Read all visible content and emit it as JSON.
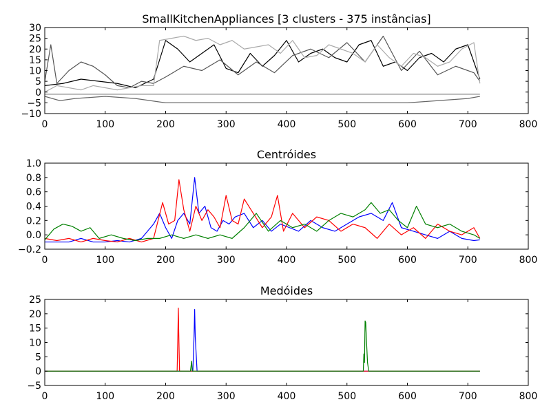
{
  "chart_data": [
    {
      "type": "line",
      "title": "SmallKitchenAppliances [3 clusters - 375 instâncias]",
      "xlim": [
        0,
        800
      ],
      "ylim": [
        -10,
        30
      ],
      "xticks": [
        0,
        100,
        200,
        300,
        400,
        500,
        600,
        700,
        800
      ],
      "yticks": [
        -10,
        -5,
        0,
        5,
        10,
        15,
        20,
        25,
        30
      ],
      "grid": false,
      "description_of_series": "Many overlaid grayscale instance series (375 instances, 3 clusters) over x 0-720; values mostly 0-26 with dips to about -5; active mainly x 180-700 plus low activity near x 0-180.",
      "series": [
        {
          "color": "#000000",
          "x": [
            0,
            30,
            60,
            90,
            120,
            150,
            180,
            200,
            220,
            240,
            260,
            280,
            300,
            320,
            340,
            360,
            380,
            400,
            420,
            440,
            460,
            480,
            500,
            520,
            540,
            560,
            580,
            600,
            620,
            640,
            660,
            680,
            700,
            720
          ],
          "values": [
            3,
            4,
            6,
            5,
            4,
            2,
            6,
            24,
            20,
            14,
            18,
            22,
            11,
            9,
            18,
            12,
            17,
            24,
            14,
            18,
            20,
            16,
            14,
            22,
            24,
            12,
            14,
            10,
            16,
            18,
            14,
            20,
            22,
            6
          ]
        },
        {
          "color": "#555555",
          "x": [
            0,
            10,
            20,
            40,
            60,
            80,
            100,
            120,
            140,
            160,
            180,
            200,
            230,
            260,
            290,
            320,
            350,
            380,
            410,
            440,
            470,
            500,
            530,
            560,
            590,
            620,
            650,
            680,
            710,
            720
          ],
          "values": [
            5,
            22,
            4,
            10,
            14,
            12,
            8,
            3,
            2,
            5,
            4,
            7,
            12,
            10,
            15,
            8,
            14,
            9,
            17,
            20,
            16,
            23,
            14,
            26,
            10,
            19,
            8,
            12,
            9,
            5
          ]
        },
        {
          "color": "#aaaaaa",
          "x": [
            0,
            20,
            40,
            60,
            80,
            100,
            120,
            140,
            160,
            180,
            190,
            210,
            230,
            250,
            270,
            290,
            310,
            330,
            350,
            370,
            390,
            410,
            430,
            450,
            470,
            490,
            510,
            530,
            550,
            570,
            590,
            610,
            630,
            650,
            670,
            690,
            710,
            720
          ],
          "values": [
            0,
            3,
            2,
            1,
            3,
            2,
            1,
            2,
            3,
            3,
            24,
            25,
            26,
            24,
            25,
            22,
            24,
            20,
            21,
            22,
            18,
            24,
            16,
            17,
            22,
            20,
            18,
            14,
            22,
            16,
            12,
            18,
            16,
            12,
            14,
            20,
            23,
            4
          ]
        },
        {
          "color": "#666666",
          "x": [
            0,
            25,
            50,
            100,
            150,
            200,
            250,
            300,
            350,
            400,
            450,
            500,
            550,
            600,
            650,
            700,
            720
          ],
          "values": [
            -2,
            -4,
            -3,
            -2,
            -3,
            -5,
            -5,
            -5,
            -5,
            -5,
            -5,
            -5,
            -5,
            -5,
            -4,
            -3,
            -2
          ]
        },
        {
          "color": "#888888",
          "x": [
            0,
            720
          ],
          "values": [
            -1,
            -1
          ]
        }
      ]
    },
    {
      "type": "line",
      "title": "Centróides",
      "xlim": [
        0,
        800
      ],
      "ylim": [
        -0.2,
        1.0
      ],
      "xticks": [
        0,
        100,
        200,
        300,
        400,
        500,
        600,
        700,
        800
      ],
      "yticks": [
        -0.2,
        0.0,
        0.2,
        0.4,
        0.6,
        0.8,
        1.0
      ],
      "ytick_labels": [
        "−0.2",
        "0.0",
        "0.2",
        "0.4",
        "0.6",
        "0.8",
        "1.0"
      ],
      "grid": false,
      "series": [
        {
          "color": "#0000ff",
          "x": [
            0,
            20,
            40,
            60,
            80,
            100,
            120,
            140,
            160,
            180,
            190,
            200,
            210,
            220,
            230,
            240,
            248,
            255,
            265,
            275,
            285,
            295,
            305,
            315,
            330,
            345,
            360,
            375,
            390,
            405,
            420,
            440,
            460,
            480,
            500,
            520,
            540,
            560,
            575,
            590,
            610,
            630,
            650,
            670,
            690,
            710,
            720
          ],
          "values": [
            -0.1,
            -0.1,
            -0.1,
            -0.05,
            -0.1,
            -0.1,
            -0.08,
            -0.1,
            -0.05,
            0.15,
            0.3,
            0.1,
            -0.05,
            0.2,
            0.3,
            0.15,
            0.8,
            0.3,
            0.4,
            0.1,
            0.05,
            0.2,
            0.15,
            0.25,
            0.3,
            0.1,
            0.2,
            0.05,
            0.15,
            0.1,
            0.05,
            0.2,
            0.1,
            0.05,
            0.15,
            0.25,
            0.3,
            0.2,
            0.45,
            0.1,
            0.05,
            0.0,
            -0.05,
            0.05,
            -0.05,
            -0.08,
            -0.07
          ]
        },
        {
          "color": "#ff0000",
          "x": [
            0,
            20,
            40,
            60,
            80,
            100,
            120,
            140,
            160,
            180,
            195,
            205,
            215,
            222,
            230,
            240,
            250,
            260,
            270,
            280,
            290,
            300,
            310,
            320,
            330,
            345,
            360,
            375,
            385,
            395,
            410,
            430,
            450,
            470,
            490,
            510,
            530,
            550,
            570,
            590,
            610,
            630,
            650,
            670,
            690,
            710,
            720
          ],
          "values": [
            -0.05,
            -0.08,
            -0.05,
            -0.1,
            -0.05,
            -0.08,
            -0.1,
            -0.05,
            -0.1,
            -0.05,
            0.45,
            0.15,
            0.2,
            0.77,
            0.35,
            0.05,
            0.4,
            0.2,
            0.35,
            0.25,
            0.1,
            0.55,
            0.2,
            0.15,
            0.5,
            0.3,
            0.1,
            0.25,
            0.55,
            0.05,
            0.3,
            0.1,
            0.25,
            0.2,
            0.05,
            0.15,
            0.1,
            -0.05,
            0.15,
            0.0,
            0.1,
            -0.05,
            0.15,
            0.05,
            0.0,
            0.1,
            -0.05
          ]
        },
        {
          "color": "#008000",
          "x": [
            0,
            15,
            30,
            45,
            60,
            75,
            90,
            110,
            130,
            150,
            170,
            190,
            210,
            230,
            250,
            270,
            290,
            310,
            330,
            350,
            370,
            390,
            410,
            430,
            450,
            470,
            490,
            510,
            530,
            540,
            555,
            570,
            585,
            600,
            615,
            630,
            650,
            670,
            690,
            710,
            720
          ],
          "values": [
            -0.07,
            0.08,
            0.15,
            0.12,
            0.05,
            0.1,
            -0.05,
            0.0,
            -0.05,
            -0.08,
            -0.05,
            -0.05,
            0.0,
            -0.05,
            0.0,
            -0.05,
            0.0,
            -0.05,
            0.1,
            0.3,
            0.05,
            0.2,
            0.1,
            0.15,
            0.05,
            0.2,
            0.3,
            0.25,
            0.35,
            0.45,
            0.3,
            0.35,
            0.2,
            0.1,
            0.4,
            0.15,
            0.1,
            0.15,
            0.05,
            0.0,
            -0.05
          ]
        }
      ]
    },
    {
      "type": "line",
      "title": "Medóides",
      "xlim": [
        0,
        800
      ],
      "ylim": [
        -5,
        25
      ],
      "xticks": [
        0,
        100,
        200,
        300,
        400,
        500,
        600,
        700,
        800
      ],
      "yticks": [
        -5,
        0,
        5,
        10,
        15,
        20,
        25
      ],
      "grid": false,
      "series": [
        {
          "color": "#0000ff",
          "x": [
            0,
            245,
            247,
            248,
            249,
            252,
            720
          ],
          "values": [
            0,
            0,
            12,
            21.5,
            12,
            0,
            0
          ]
        },
        {
          "color": "#ff0000",
          "x": [
            0,
            219,
            220,
            221,
            222,
            223,
            720
          ],
          "values": [
            0,
            0,
            10,
            22,
            10,
            0,
            0
          ]
        },
        {
          "color": "#008000",
          "x": [
            0,
            241,
            243,
            244,
            246,
            527,
            528,
            529,
            530,
            531,
            532,
            534,
            536,
            720
          ],
          "values": [
            0,
            0,
            3.5,
            0,
            0,
            0,
            6,
            3,
            17.5,
            17,
            12,
            3,
            0,
            0
          ]
        }
      ]
    }
  ]
}
